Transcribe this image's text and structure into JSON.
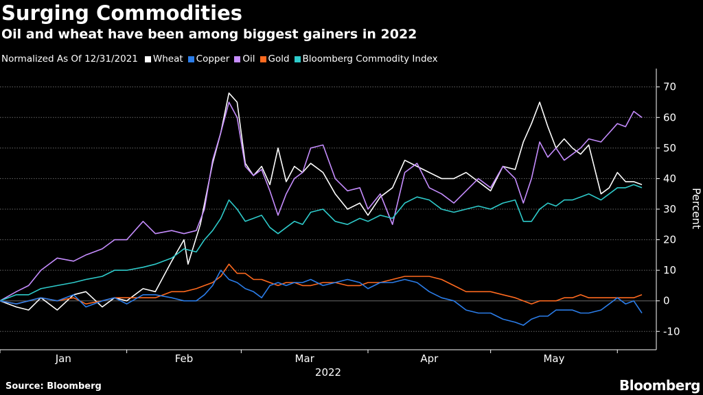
{
  "title": "Surging Commodities",
  "subtitle": "Oil and wheat have been among biggest gainers in 2022",
  "legend_note": "Normalized As Of 12/31/2021",
  "source": "Source: Bloomberg",
  "brand": "Bloomberg",
  "chart_data": {
    "type": "line",
    "title": "Surging Commodities",
    "subtitle": "Oil and wheat have been among biggest gainers in 2022",
    "xlabel": "2022",
    "ylabel": "Percent",
    "x_tick_labels": [
      "Jan",
      "Feb",
      "Mar",
      "Apr",
      "May"
    ],
    "y_ticks": [
      -10,
      0,
      10,
      20,
      30,
      40,
      50,
      60,
      70
    ],
    "ylim": [
      -16,
      76
    ],
    "x_range_days": [
      0,
      143
    ],
    "grid": "horizontal dashed",
    "legend_position": "top-left",
    "series": [
      {
        "name": "Wheat",
        "color": "#ffffff",
        "points": [
          [
            0,
            0
          ],
          [
            4,
            -2
          ],
          [
            7,
            -3
          ],
          [
            10,
            1
          ],
          [
            14,
            -3
          ],
          [
            18,
            2
          ],
          [
            21,
            3
          ],
          [
            25,
            -2
          ],
          [
            28,
            1
          ],
          [
            31,
            0
          ],
          [
            35,
            4
          ],
          [
            38,
            3
          ],
          [
            42,
            13
          ],
          [
            45,
            20
          ],
          [
            46,
            12
          ],
          [
            49,
            25
          ],
          [
            52,
            45
          ],
          [
            54,
            55
          ],
          [
            56,
            68
          ],
          [
            58,
            65
          ],
          [
            60,
            45
          ],
          [
            62,
            41
          ],
          [
            64,
            44
          ],
          [
            66,
            38
          ],
          [
            68,
            50
          ],
          [
            70,
            39
          ],
          [
            72,
            44
          ],
          [
            74,
            42
          ],
          [
            76,
            45
          ],
          [
            79,
            42
          ],
          [
            82,
            35
          ],
          [
            85,
            30
          ],
          [
            88,
            32
          ],
          [
            90,
            28
          ],
          [
            93,
            34
          ],
          [
            96,
            37
          ],
          [
            99,
            46
          ],
          [
            102,
            44
          ],
          [
            105,
            42
          ],
          [
            108,
            40
          ],
          [
            111,
            40
          ],
          [
            114,
            42
          ],
          [
            117,
            39
          ],
          [
            120,
            36
          ],
          [
            123,
            44
          ],
          [
            126,
            43
          ],
          [
            128,
            52
          ],
          [
            130,
            58
          ],
          [
            132,
            65
          ],
          [
            134,
            57
          ],
          [
            136,
            50
          ],
          [
            138,
            53
          ],
          [
            140,
            50
          ],
          [
            142,
            48
          ],
          [
            144,
            51
          ],
          [
            147,
            35
          ],
          [
            149,
            37
          ],
          [
            151,
            42
          ],
          [
            153,
            39
          ],
          [
            155,
            39
          ],
          [
            157,
            38
          ]
        ]
      },
      {
        "name": "Oil",
        "color": "#c68dff",
        "points": [
          [
            0,
            0
          ],
          [
            4,
            3
          ],
          [
            7,
            5
          ],
          [
            10,
            10
          ],
          [
            14,
            14
          ],
          [
            18,
            13
          ],
          [
            21,
            15
          ],
          [
            25,
            17
          ],
          [
            28,
            20
          ],
          [
            31,
            20
          ],
          [
            35,
            26
          ],
          [
            38,
            22
          ],
          [
            42,
            23
          ],
          [
            45,
            22
          ],
          [
            48,
            23
          ],
          [
            50,
            30
          ],
          [
            52,
            46
          ],
          [
            54,
            55
          ],
          [
            56,
            65
          ],
          [
            58,
            60
          ],
          [
            60,
            44
          ],
          [
            62,
            41
          ],
          [
            64,
            43
          ],
          [
            66,
            36
          ],
          [
            68,
            28
          ],
          [
            70,
            35
          ],
          [
            72,
            40
          ],
          [
            74,
            42
          ],
          [
            76,
            50
          ],
          [
            79,
            51
          ],
          [
            82,
            40
          ],
          [
            85,
            36
          ],
          [
            88,
            37
          ],
          [
            90,
            30
          ],
          [
            93,
            35
          ],
          [
            96,
            25
          ],
          [
            99,
            42
          ],
          [
            102,
            45
          ],
          [
            105,
            37
          ],
          [
            108,
            35
          ],
          [
            111,
            32
          ],
          [
            114,
            36
          ],
          [
            117,
            40
          ],
          [
            120,
            37
          ],
          [
            123,
            44
          ],
          [
            126,
            40
          ],
          [
            128,
            32
          ],
          [
            130,
            40
          ],
          [
            132,
            52
          ],
          [
            134,
            47
          ],
          [
            136,
            50
          ],
          [
            138,
            46
          ],
          [
            140,
            48
          ],
          [
            142,
            50
          ],
          [
            144,
            53
          ],
          [
            147,
            52
          ],
          [
            149,
            55
          ],
          [
            151,
            58
          ],
          [
            153,
            57
          ],
          [
            155,
            62
          ],
          [
            157,
            60
          ]
        ]
      },
      {
        "name": "Bloomberg Commodity Index",
        "color": "#2ecbcb",
        "points": [
          [
            0,
            0
          ],
          [
            4,
            2
          ],
          [
            7,
            2
          ],
          [
            10,
            4
          ],
          [
            14,
            5
          ],
          [
            18,
            6
          ],
          [
            21,
            7
          ],
          [
            25,
            8
          ],
          [
            28,
            10
          ],
          [
            31,
            10
          ],
          [
            35,
            11
          ],
          [
            38,
            12
          ],
          [
            42,
            14
          ],
          [
            45,
            17
          ],
          [
            48,
            16
          ],
          [
            50,
            20
          ],
          [
            52,
            23
          ],
          [
            54,
            27
          ],
          [
            56,
            33
          ],
          [
            58,
            30
          ],
          [
            60,
            26
          ],
          [
            62,
            27
          ],
          [
            64,
            28
          ],
          [
            66,
            24
          ],
          [
            68,
            22
          ],
          [
            70,
            24
          ],
          [
            72,
            26
          ],
          [
            74,
            25
          ],
          [
            76,
            29
          ],
          [
            79,
            30
          ],
          [
            82,
            26
          ],
          [
            85,
            25
          ],
          [
            88,
            27
          ],
          [
            90,
            26
          ],
          [
            93,
            28
          ],
          [
            96,
            27
          ],
          [
            99,
            32
          ],
          [
            102,
            34
          ],
          [
            105,
            33
          ],
          [
            108,
            30
          ],
          [
            111,
            29
          ],
          [
            114,
            30
          ],
          [
            117,
            31
          ],
          [
            120,
            30
          ],
          [
            123,
            32
          ],
          [
            126,
            33
          ],
          [
            128,
            26
          ],
          [
            130,
            26
          ],
          [
            132,
            30
          ],
          [
            134,
            32
          ],
          [
            136,
            31
          ],
          [
            138,
            33
          ],
          [
            140,
            33
          ],
          [
            142,
            34
          ],
          [
            144,
            35
          ],
          [
            147,
            33
          ],
          [
            149,
            35
          ],
          [
            151,
            37
          ],
          [
            153,
            37
          ],
          [
            155,
            38
          ],
          [
            157,
            37
          ]
        ]
      },
      {
        "name": "Gold",
        "color": "#ff6a1f",
        "points": [
          [
            0,
            0
          ],
          [
            4,
            -1
          ],
          [
            7,
            0
          ],
          [
            10,
            1
          ],
          [
            14,
            0
          ],
          [
            18,
            1
          ],
          [
            21,
            -1
          ],
          [
            25,
            0
          ],
          [
            28,
            1
          ],
          [
            31,
            1
          ],
          [
            35,
            1
          ],
          [
            38,
            1
          ],
          [
            42,
            3
          ],
          [
            45,
            3
          ],
          [
            48,
            4
          ],
          [
            50,
            5
          ],
          [
            52,
            6
          ],
          [
            54,
            8
          ],
          [
            56,
            12
          ],
          [
            58,
            9
          ],
          [
            60,
            9
          ],
          [
            62,
            7
          ],
          [
            64,
            7
          ],
          [
            66,
            6
          ],
          [
            68,
            5
          ],
          [
            70,
            6
          ],
          [
            72,
            6
          ],
          [
            74,
            5
          ],
          [
            76,
            5
          ],
          [
            79,
            6
          ],
          [
            82,
            6
          ],
          [
            85,
            5
          ],
          [
            88,
            5
          ],
          [
            90,
            6
          ],
          [
            93,
            6
          ],
          [
            96,
            7
          ],
          [
            99,
            8
          ],
          [
            102,
            8
          ],
          [
            105,
            8
          ],
          [
            108,
            7
          ],
          [
            111,
            5
          ],
          [
            114,
            3
          ],
          [
            117,
            3
          ],
          [
            120,
            3
          ],
          [
            123,
            2
          ],
          [
            126,
            1
          ],
          [
            128,
            0
          ],
          [
            130,
            -1
          ],
          [
            132,
            0
          ],
          [
            134,
            0
          ],
          [
            136,
            0
          ],
          [
            138,
            1
          ],
          [
            140,
            1
          ],
          [
            142,
            2
          ],
          [
            144,
            1
          ],
          [
            147,
            1
          ],
          [
            149,
            1
          ],
          [
            151,
            1
          ],
          [
            153,
            1
          ],
          [
            155,
            1
          ],
          [
            157,
            2
          ]
        ]
      },
      {
        "name": "Copper",
        "color": "#2b7de9",
        "points": [
          [
            0,
            0
          ],
          [
            4,
            -1
          ],
          [
            7,
            0
          ],
          [
            10,
            1
          ],
          [
            14,
            0
          ],
          [
            18,
            2
          ],
          [
            21,
            -2
          ],
          [
            25,
            0
          ],
          [
            28,
            1
          ],
          [
            31,
            -1
          ],
          [
            35,
            2
          ],
          [
            38,
            2
          ],
          [
            42,
            1
          ],
          [
            45,
            0
          ],
          [
            48,
            0
          ],
          [
            50,
            2
          ],
          [
            52,
            5
          ],
          [
            54,
            10
          ],
          [
            56,
            7
          ],
          [
            58,
            6
          ],
          [
            60,
            4
          ],
          [
            62,
            3
          ],
          [
            64,
            1
          ],
          [
            66,
            5
          ],
          [
            68,
            6
          ],
          [
            70,
            5
          ],
          [
            72,
            6
          ],
          [
            74,
            6
          ],
          [
            76,
            7
          ],
          [
            79,
            5
          ],
          [
            82,
            6
          ],
          [
            85,
            7
          ],
          [
            88,
            6
          ],
          [
            90,
            4
          ],
          [
            93,
            6
          ],
          [
            96,
            6
          ],
          [
            99,
            7
          ],
          [
            102,
            6
          ],
          [
            105,
            3
          ],
          [
            108,
            1
          ],
          [
            111,
            0
          ],
          [
            114,
            -3
          ],
          [
            117,
            -4
          ],
          [
            120,
            -4
          ],
          [
            123,
            -6
          ],
          [
            126,
            -7
          ],
          [
            128,
            -8
          ],
          [
            130,
            -6
          ],
          [
            132,
            -5
          ],
          [
            134,
            -5
          ],
          [
            136,
            -3
          ],
          [
            138,
            -3
          ],
          [
            140,
            -3
          ],
          [
            142,
            -4
          ],
          [
            144,
            -4
          ],
          [
            147,
            -3
          ],
          [
            149,
            -1
          ],
          [
            151,
            1
          ],
          [
            153,
            -1
          ],
          [
            155,
            0
          ],
          [
            157,
            -4
          ]
        ]
      }
    ]
  }
}
